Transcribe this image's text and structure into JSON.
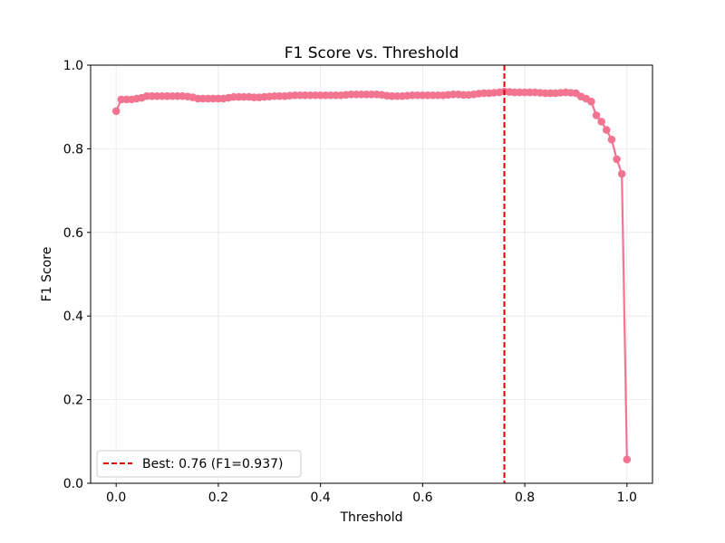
{
  "colors": {
    "series": "#f37491",
    "best_line": "#e00000",
    "grid": "#e6e6e6",
    "axes": "#000000"
  },
  "chart_data": {
    "type": "line",
    "title": "F1 Score vs. Threshold",
    "xlabel": "Threshold",
    "ylabel": "F1 Score",
    "xlim": [
      -0.05,
      1.05
    ],
    "ylim": [
      0.0,
      1.0
    ],
    "xticks": [
      "0.0",
      "0.2",
      "0.4",
      "0.6",
      "0.8",
      "1.0"
    ],
    "yticks": [
      "0.0",
      "0.2",
      "0.4",
      "0.6",
      "0.8",
      "1.0"
    ],
    "grid": true,
    "legend_position": "lower-left",
    "best": {
      "threshold": 0.76,
      "f1": 0.937,
      "label": "Best: 0.76 (F1=0.937)"
    },
    "series": [
      {
        "x": [
          0.0,
          0.01,
          0.02,
          0.03,
          0.04,
          0.05,
          0.06,
          0.07,
          0.08,
          0.09,
          0.1,
          0.11,
          0.12,
          0.13,
          0.14,
          0.15,
          0.16,
          0.17,
          0.18,
          0.19,
          0.2,
          0.21,
          0.22,
          0.23,
          0.24,
          0.25,
          0.26,
          0.27,
          0.28,
          0.29,
          0.3,
          0.31,
          0.32,
          0.33,
          0.34,
          0.35,
          0.36,
          0.37,
          0.38,
          0.39,
          0.4,
          0.41,
          0.42,
          0.43,
          0.44,
          0.45,
          0.46,
          0.47,
          0.48,
          0.49,
          0.5,
          0.51,
          0.52,
          0.53,
          0.54,
          0.55,
          0.56,
          0.57,
          0.58,
          0.59,
          0.6,
          0.61,
          0.62,
          0.63,
          0.64,
          0.65,
          0.66,
          0.67,
          0.68,
          0.69,
          0.7,
          0.71,
          0.72,
          0.73,
          0.74,
          0.75,
          0.76,
          0.77,
          0.78,
          0.79,
          0.8,
          0.81,
          0.82,
          0.83,
          0.84,
          0.85,
          0.86,
          0.87,
          0.88,
          0.89,
          0.9,
          0.91,
          0.92,
          0.93,
          0.94,
          0.95,
          0.96,
          0.97,
          0.98,
          0.99,
          1.0
        ],
        "y": [
          0.89,
          0.918,
          0.918,
          0.918,
          0.92,
          0.922,
          0.926,
          0.926,
          0.926,
          0.926,
          0.926,
          0.926,
          0.926,
          0.926,
          0.925,
          0.923,
          0.92,
          0.92,
          0.92,
          0.92,
          0.92,
          0.92,
          0.922,
          0.924,
          0.924,
          0.924,
          0.924,
          0.923,
          0.923,
          0.924,
          0.925,
          0.926,
          0.926,
          0.926,
          0.927,
          0.928,
          0.928,
          0.928,
          0.928,
          0.928,
          0.928,
          0.928,
          0.928,
          0.928,
          0.928,
          0.929,
          0.93,
          0.93,
          0.93,
          0.93,
          0.93,
          0.93,
          0.929,
          0.927,
          0.926,
          0.926,
          0.926,
          0.927,
          0.928,
          0.928,
          0.928,
          0.928,
          0.928,
          0.928,
          0.928,
          0.929,
          0.93,
          0.93,
          0.929,
          0.929,
          0.93,
          0.932,
          0.933,
          0.933,
          0.934,
          0.935,
          0.937,
          0.936,
          0.935,
          0.935,
          0.935,
          0.935,
          0.935,
          0.934,
          0.933,
          0.933,
          0.933,
          0.934,
          0.935,
          0.934,
          0.933,
          0.925,
          0.92,
          0.913,
          0.88,
          0.865,
          0.845,
          0.822,
          0.775,
          0.74,
          0.057
        ]
      }
    ]
  }
}
